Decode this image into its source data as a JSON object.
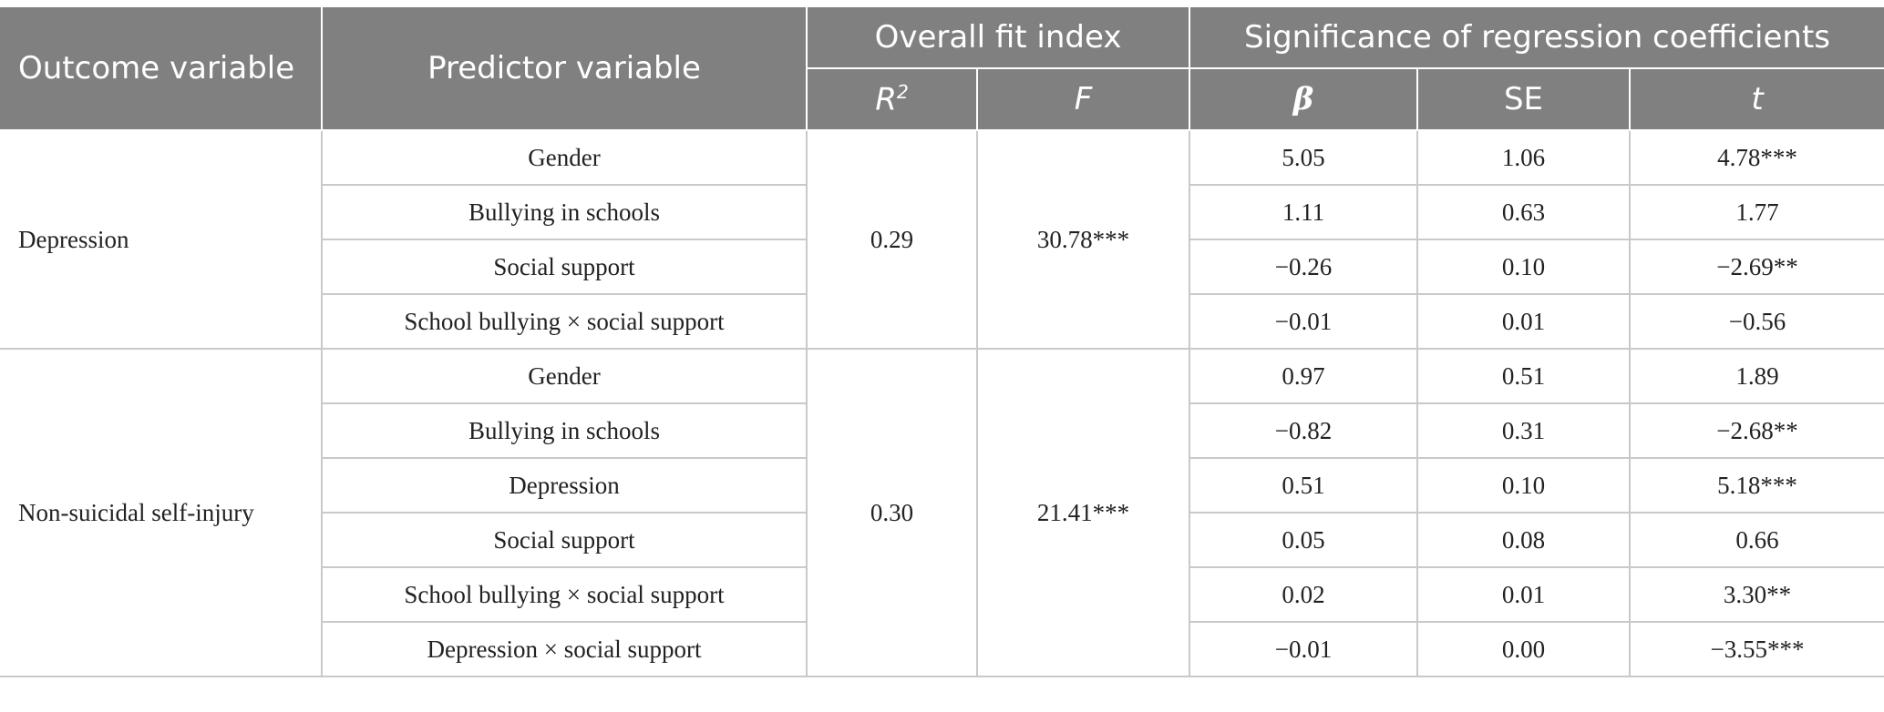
{
  "headers": {
    "outcome": "Outcome variable",
    "predictor": "Predictor variable",
    "fit": "Overall fit index",
    "coef": "Significance of regression coefficients",
    "r2_base": "R",
    "r2_sup": "2",
    "f": "F",
    "beta": "β",
    "se": "SE",
    "t": "t"
  },
  "groups": [
    {
      "outcome": "Depression",
      "r2": "0.29",
      "f": "30.78***",
      "rows": [
        {
          "predictor": "Gender",
          "beta": "5.05",
          "se": "1.06",
          "t": "4.78***"
        },
        {
          "predictor": "Bullying in schools",
          "beta": "1.11",
          "se": "0.63",
          "t": "1.77"
        },
        {
          "predictor": "Social support",
          "beta": "−0.26",
          "se": "0.10",
          "t": "−2.69**"
        },
        {
          "predictor": "School bullying × social support",
          "beta": "−0.01",
          "se": "0.01",
          "t": "−0.56"
        }
      ]
    },
    {
      "outcome": "Non-suicidal self-injury",
      "r2": "0.30",
      "f": "21.41***",
      "rows": [
        {
          "predictor": "Gender",
          "beta": "0.97",
          "se": "0.51",
          "t": "1.89"
        },
        {
          "predictor": "Bullying in schools",
          "beta": "−0.82",
          "se": "0.31",
          "t": "−2.68**"
        },
        {
          "predictor": "Depression",
          "beta": "0.51",
          "se": "0.10",
          "t": "5.18***"
        },
        {
          "predictor": "Social support",
          "beta": "0.05",
          "se": "0.08",
          "t": "0.66"
        },
        {
          "predictor": "School bullying × social support",
          "beta": "0.02",
          "se": "0.01",
          "t": "3.30**"
        },
        {
          "predictor": "Depression × social support",
          "beta": "−0.01",
          "se": "0.00",
          "t": "−3.55***"
        }
      ]
    }
  ]
}
